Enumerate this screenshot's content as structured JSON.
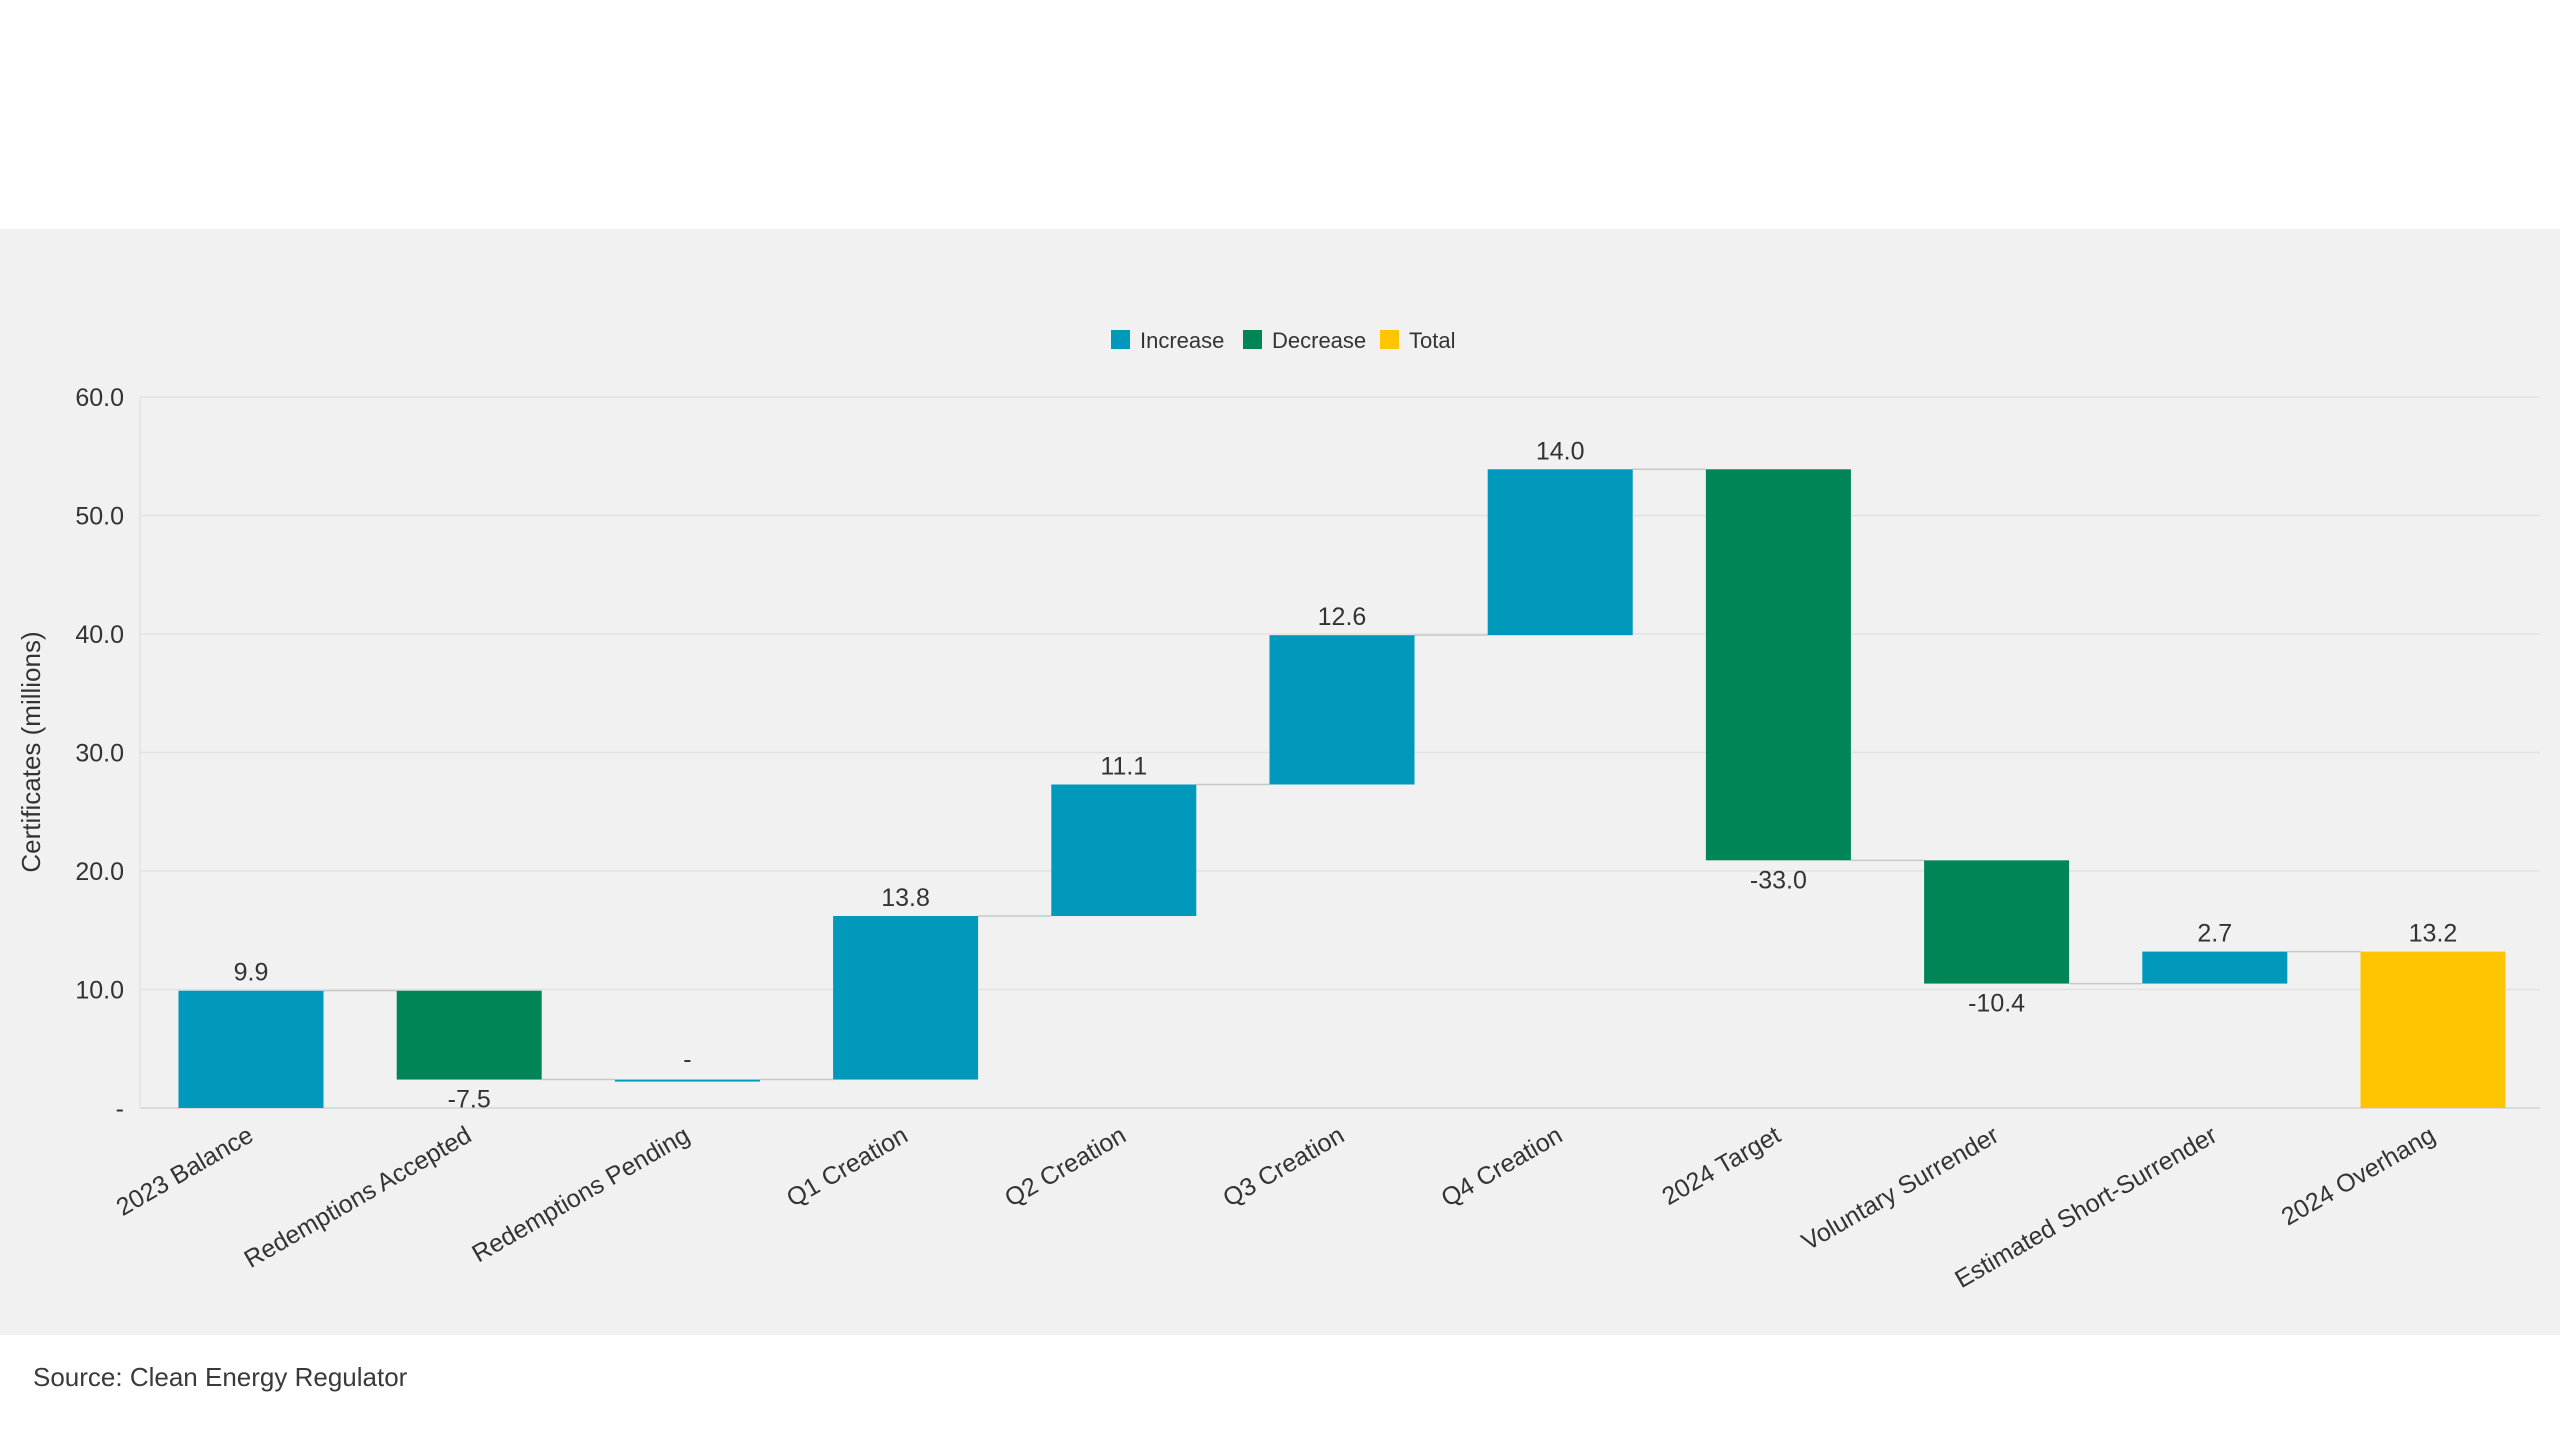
{
  "source_note": "Source: Clean Energy Regulator",
  "chart_data": {
    "type": "bar",
    "subtype": "waterfall",
    "title": "",
    "xlabel": "",
    "ylabel": "Certificates (millions)",
    "ylim": [
      0,
      60
    ],
    "yticks": [
      0,
      10,
      20,
      30,
      40,
      50,
      60
    ],
    "ytick_labels": [
      "-",
      "10.0",
      "20.0",
      "30.0",
      "40.0",
      "50.0",
      "60.0"
    ],
    "grid": true,
    "legend_position": "top-center",
    "legend": [
      {
        "name": "Increase",
        "color": "#0098bb"
      },
      {
        "name": "Decrease",
        "color": "#008656"
      },
      {
        "name": "Total",
        "color": "#ffc600"
      }
    ],
    "categories": [
      "2023 Balance",
      "Redemptions Accepted",
      "Redemptions Pending",
      "Q1 Creation",
      "Q2 Creation",
      "Q3 Creation",
      "Q4 Creation",
      "2024 Target",
      "Voluntary Surrender",
      "Estimated Short-Surrender",
      "2024 Overhang"
    ],
    "values": [
      9.9,
      -7.5,
      0,
      13.8,
      11.1,
      12.6,
      14.0,
      -33.0,
      -10.4,
      2.7,
      13.2
    ],
    "data_labels": [
      "9.9",
      "-7.5",
      "-",
      "13.8",
      "11.1",
      "12.6",
      "14.0",
      "-33.0",
      "-10.4",
      "2.7",
      "13.2"
    ],
    "kinds": [
      "increase",
      "decrease",
      "increase",
      "increase",
      "increase",
      "increase",
      "increase",
      "decrease",
      "decrease",
      "increase",
      "total"
    ]
  }
}
